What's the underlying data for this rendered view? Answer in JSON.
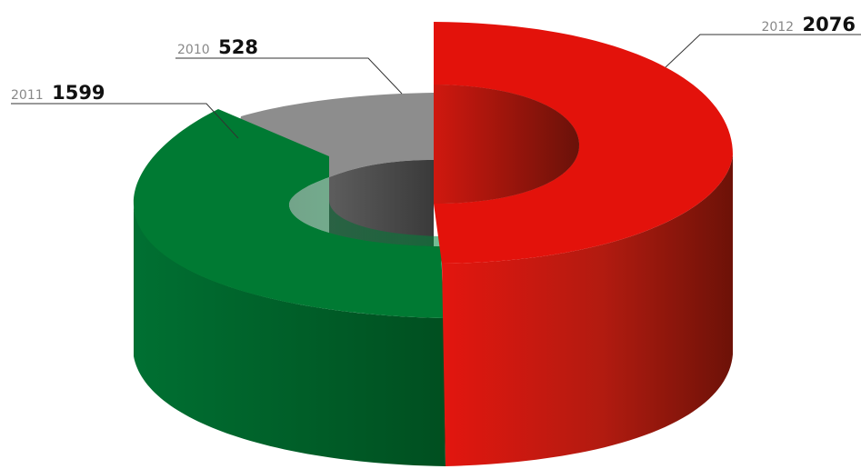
{
  "chart_data": {
    "type": "pie",
    "style": "3d-donut",
    "categories": [
      "2012",
      "2011",
      "2010"
    ],
    "values": [
      2076,
      1599,
      528
    ],
    "colors": [
      "#e3120b",
      "#007a33",
      "#8c8c8c"
    ],
    "labels": [
      {
        "year": "2012",
        "value": "2076"
      },
      {
        "year": "2011",
        "value": "1599"
      },
      {
        "year": "2010",
        "value": "528"
      }
    ]
  }
}
